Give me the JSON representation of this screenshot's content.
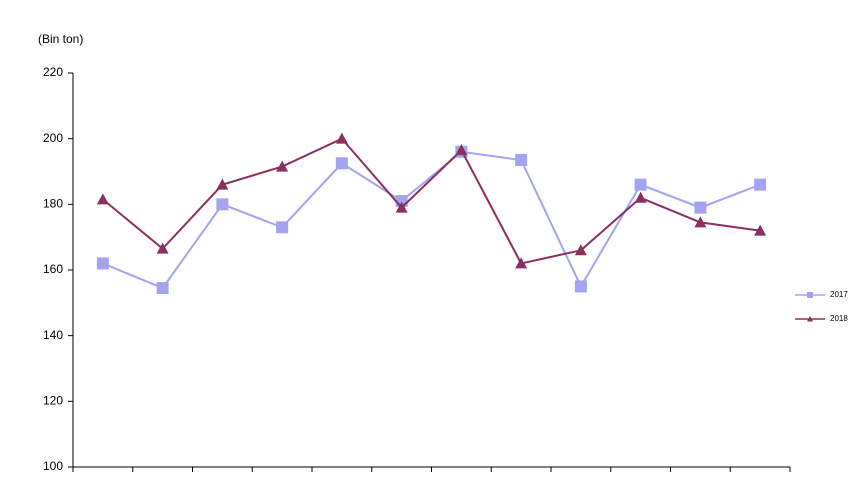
{
  "chart_data": {
    "type": "line",
    "y_label": "(Bin ton)",
    "categories": [
      null,
      null,
      null,
      null,
      null,
      null,
      null,
      null,
      null,
      null,
      null,
      null
    ],
    "series": [
      {
        "name": "2017",
        "color": "#a3a3f0",
        "marker": "square",
        "values": [
          162,
          154.5,
          180,
          173,
          192.5,
          181,
          196,
          193.5,
          155,
          186,
          179,
          186
        ]
      },
      {
        "name": "2018",
        "color": "#8b2f5f",
        "marker": "triangle",
        "values": [
          181.5,
          166.5,
          186,
          191.5,
          200,
          179,
          196.5,
          162,
          166,
          182,
          174.5,
          172
        ]
      }
    ],
    "ylim": [
      100,
      220
    ],
    "yticks": [
      100,
      120,
      140,
      160,
      180,
      200,
      220
    ],
    "grid": false,
    "legend": "right"
  }
}
